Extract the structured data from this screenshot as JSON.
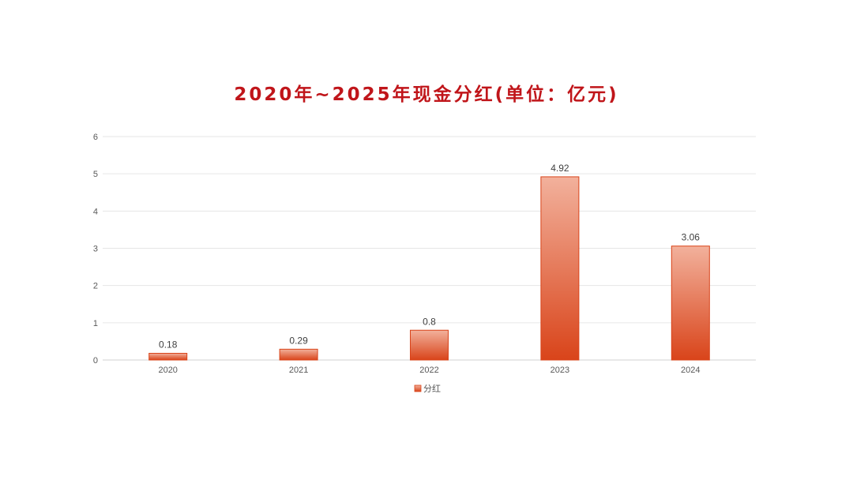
{
  "chart_data": {
    "type": "bar",
    "title": "2020年~2025年现金分红(单位：亿元)",
    "categories": [
      "2020",
      "2021",
      "2022",
      "2023",
      "2024"
    ],
    "series": [
      {
        "name": "分红",
        "values": [
          0.18,
          0.29,
          0.8,
          4.92,
          3.06
        ],
        "data_labels": [
          "0.18",
          "0.29",
          "0.8",
          "4.92",
          "3.06"
        ]
      }
    ],
    "xlabel": "",
    "ylabel": "",
    "ylim": [
      0,
      6
    ],
    "yticks": [
      "0",
      "1",
      "2",
      "3",
      "4",
      "5",
      "6"
    ],
    "grid": true,
    "legend_position": "bottom",
    "colors": {
      "title": "#c0151a",
      "bar_top": "#f2b19c",
      "bar_bottom": "#d9441a",
      "bar_edge": "#d9441a",
      "grid": "#e6e6e6",
      "axis": "#d0d0d0"
    }
  }
}
